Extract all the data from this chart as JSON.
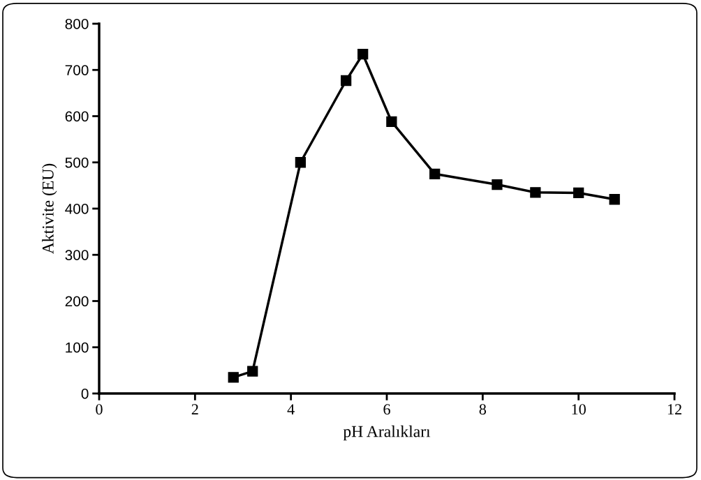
{
  "chart_data": {
    "type": "line",
    "xlabel": "pH Aralıkları",
    "ylabel": "Aktivite (EU)",
    "x": [
      2.8,
      3.2,
      4.2,
      5.15,
      5.5,
      6.1,
      7.0,
      8.3,
      9.1,
      10.0,
      10.75
    ],
    "series": [
      {
        "color": "#000000",
        "values": [
          35,
          48,
          500,
          677,
          734,
          588,
          475,
          452,
          435,
          434,
          420
        ]
      }
    ],
    "xlim": [
      0,
      12
    ],
    "xticks": [
      0,
      2,
      4,
      6,
      8,
      10,
      12
    ],
    "ylim": [
      0,
      800
    ],
    "yticks": [
      0,
      100,
      200,
      300,
      400,
      500,
      600,
      700,
      800
    ],
    "marker": "square",
    "line_style": "solid",
    "grid": false,
    "legend": false
  }
}
